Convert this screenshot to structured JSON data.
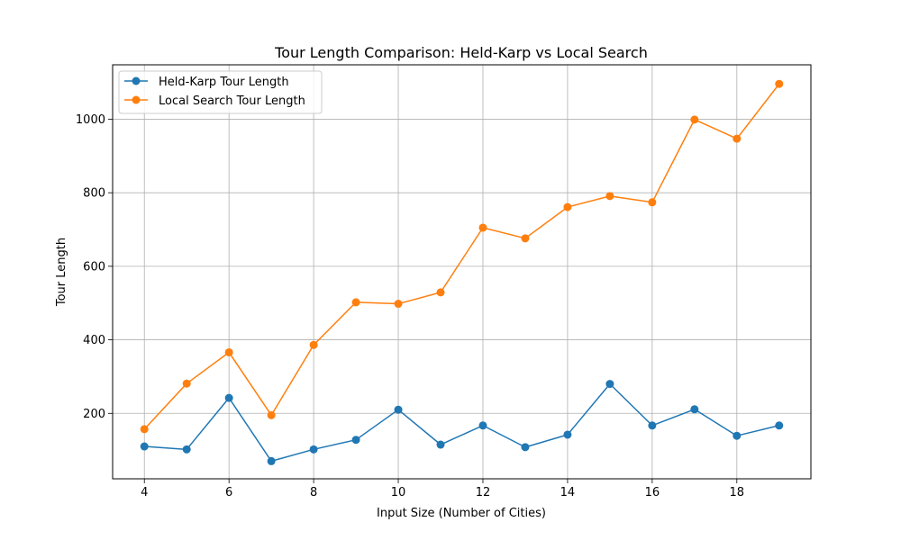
{
  "chart_data": {
    "type": "line",
    "title": "Tour Length Comparison: Held-Karp vs Local Search",
    "xlabel": "Input Size (Number of Cities)",
    "ylabel": "Tour Length",
    "x": [
      4,
      5,
      6,
      7,
      8,
      9,
      10,
      11,
      12,
      13,
      14,
      15,
      16,
      17,
      18,
      19
    ],
    "xlim": [
      3.25,
      19.75
    ],
    "ylim": [
      22,
      1148
    ],
    "xticks": [
      4,
      6,
      8,
      10,
      12,
      14,
      16,
      18
    ],
    "yticks": [
      200,
      400,
      600,
      800,
      1000
    ],
    "grid": true,
    "legend_position": "top-left",
    "series": [
      {
        "name": "Held-Karp Tour Length",
        "color": "#1f77b4",
        "marker": "circle",
        "values": [
          110,
          102,
          242,
          70,
          102,
          128,
          210,
          115,
          167,
          108,
          142,
          280,
          167,
          211,
          139,
          167
        ]
      },
      {
        "name": "Local Search Tour Length",
        "color": "#ff7f0e",
        "marker": "circle",
        "values": [
          157,
          281,
          366,
          195,
          386,
          502,
          498,
          529,
          705,
          676,
          761,
          791,
          774,
          999,
          947,
          1096
        ]
      }
    ]
  }
}
